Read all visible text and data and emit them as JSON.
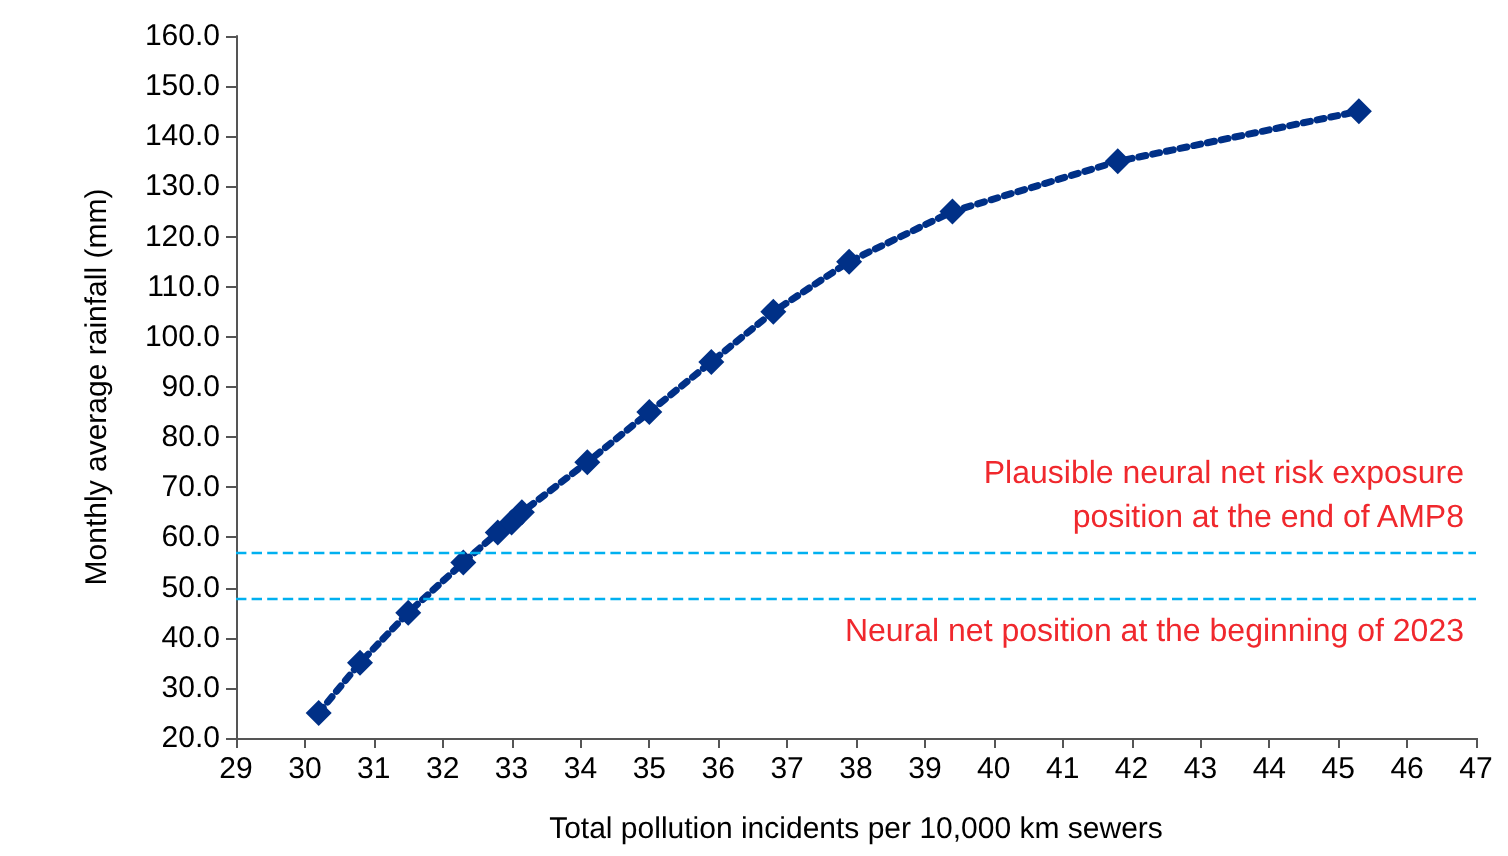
{
  "chart_data": {
    "type": "line",
    "xlabel": "Total pollution incidents per 10,000 km sewers",
    "ylabel": "Monthly average rainfall (mm)",
    "x": [
      30.2,
      30.8,
      31.5,
      32.3,
      32.8,
      33.0,
      33.15,
      34.1,
      35.0,
      35.9,
      36.8,
      37.9,
      39.4,
      41.8,
      45.3
    ],
    "values": [
      25,
      35,
      45,
      55,
      61,
      63,
      65,
      75,
      85,
      95,
      105,
      115,
      125,
      135,
      145
    ],
    "color": "#003087",
    "marker": "diamond",
    "line_style": "dotted",
    "grid": false,
    "xlim": [
      29,
      47
    ],
    "xticks": [
      29,
      30,
      31,
      32,
      33,
      34,
      35,
      36,
      37,
      38,
      39,
      40,
      41,
      42,
      43,
      44,
      45,
      46,
      47
    ],
    "ylim": [
      20,
      160
    ],
    "yticks": [
      {
        "value": 20,
        "label": "20.0"
      },
      {
        "value": 30,
        "label": "30.0"
      },
      {
        "value": 40,
        "label": "40.0"
      },
      {
        "value": 50,
        "label": "50.0"
      },
      {
        "value": 60,
        "label": "60.0"
      },
      {
        "value": 70,
        "label": "70.0"
      },
      {
        "value": 80,
        "label": "80.0"
      },
      {
        "value": 90,
        "label": "90.0"
      },
      {
        "value": 100,
        "label": "100.0"
      },
      {
        "value": 110,
        "label": "110.0"
      },
      {
        "value": 120,
        "label": "120.0"
      },
      {
        "value": 130,
        "label": "130.0"
      },
      {
        "value": 140,
        "label": "140.0"
      },
      {
        "value": 150,
        "label": "150.0"
      },
      {
        "value": 160,
        "label": "160.0"
      }
    ],
    "ref_lines": [
      {
        "axis": "y",
        "value": 57,
        "label": "Plausible neural net risk exposure\nposition at the end of AMP8",
        "color": "#00b0f0",
        "line_style": "dashed"
      },
      {
        "axis": "y",
        "value": 48,
        "label": "Neural net position at the beginning of 2023",
        "color": "#00b0f0",
        "line_style": "dashed"
      }
    ]
  }
}
